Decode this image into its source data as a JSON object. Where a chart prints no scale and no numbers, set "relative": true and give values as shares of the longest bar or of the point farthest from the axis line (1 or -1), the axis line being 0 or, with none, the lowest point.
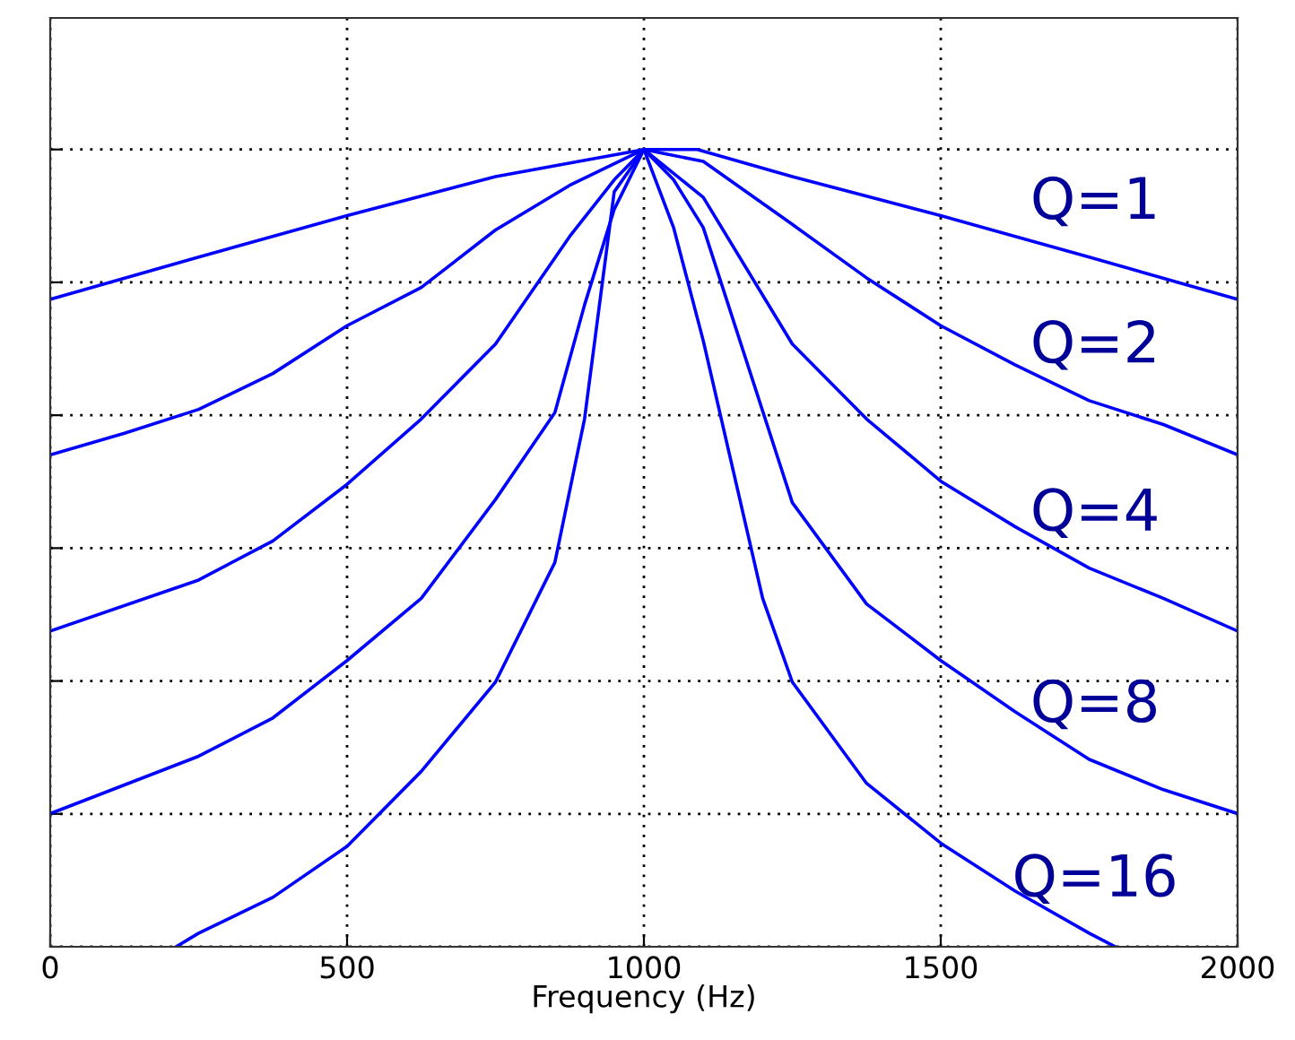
{
  "chart_data": {
    "type": "line",
    "xlabel": "Frequency (Hz)",
    "relative": true,
    "grid": true,
    "line_style": "solid",
    "marker": "none",
    "tick_labels": "x",
    "xlim": [
      0,
      2000
    ],
    "xticks": [
      0,
      500,
      1000,
      1500,
      2000
    ],
    "series": [
      {
        "name": "Q=1",
        "color": "#0000ff",
        "x": [
          0,
          250,
          500,
          750,
          1000,
          1090,
          1250,
          1500,
          1750,
          2000
        ],
        "values": [
          0.812,
          0.865,
          0.917,
          0.966,
          1,
          1,
          0.966,
          0.917,
          0.865,
          0.812
        ]
      },
      {
        "name": "Q=2",
        "color": "#0000ff",
        "x": [
          0,
          125,
          250,
          375,
          500,
          625,
          750,
          875,
          1000,
          1100,
          1250,
          1375,
          1500,
          1625,
          1750,
          1875,
          2000
        ],
        "values": [
          0.617,
          0.644,
          0.674,
          0.719,
          0.779,
          0.827,
          0.899,
          0.955,
          1,
          0.985,
          0.906,
          0.839,
          0.779,
          0.73,
          0.685,
          0.655,
          0.617
        ]
      },
      {
        "name": "Q=4",
        "color": "#0000ff",
        "x": [
          0,
          250,
          375,
          500,
          625,
          750,
          875,
          950,
          1000,
          1100,
          1250,
          1375,
          1500,
          1625,
          1750,
          1875,
          2000
        ],
        "values": [
          0.396,
          0.46,
          0.509,
          0.58,
          0.662,
          0.756,
          0.891,
          0.962,
          1,
          0.94,
          0.756,
          0.662,
          0.584,
          0.527,
          0.475,
          0.437,
          0.396
        ]
      },
      {
        "name": "Q=8",
        "color": "#0000ff",
        "x": [
          0,
          250,
          375,
          500,
          625,
          750,
          850,
          900,
          950,
          1000,
          1050,
          1100,
          1250,
          1375,
          1500,
          1625,
          1750,
          1875,
          2000
        ],
        "values": [
          0.167,
          0.239,
          0.287,
          0.359,
          0.437,
          0.561,
          0.67,
          0.805,
          0.925,
          1,
          0.962,
          0.902,
          0.557,
          0.43,
          0.359,
          0.295,
          0.235,
          0.197,
          0.167
        ]
      },
      {
        "name": "Q=16",
        "color": "#0000ff",
        "x": [
          212,
          250,
          375,
          500,
          625,
          750,
          850,
          900,
          950,
          1000,
          1050,
          1100,
          1200,
          1250,
          1375,
          1500,
          1625,
          1750,
          1794
        ],
        "values": [
          0,
          0.017,
          0.062,
          0.126,
          0.22,
          0.332,
          0.482,
          0.662,
          0.947,
          1,
          0.902,
          0.76,
          0.437,
          0.332,
          0.205,
          0.13,
          0.07,
          0.017,
          0
        ]
      }
    ]
  }
}
